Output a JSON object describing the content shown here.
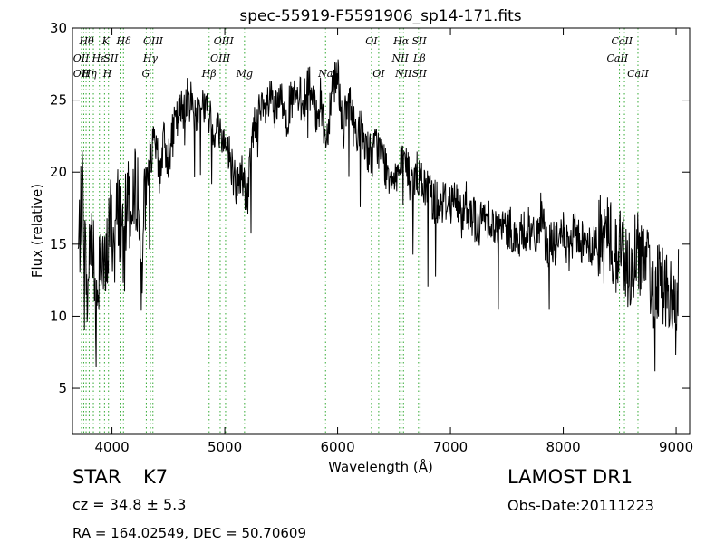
{
  "chart_data": {
    "type": "line",
    "title": "spec-55919-F5591906_sp14-171.fits",
    "xlabel": "Wavelength (Å)",
    "ylabel": "Flux (relative)",
    "xlim": [
      3650,
      9120
    ],
    "ylim": [
      1.8,
      30
    ],
    "xticks": [
      4000,
      5000,
      6000,
      7000,
      8000,
      9000
    ],
    "yticks": [
      5,
      10,
      15,
      20,
      25,
      30
    ],
    "grid": false,
    "line_color": "#000000",
    "marker_color": "#33aa33",
    "series": [
      {
        "x": [
          3700,
          3740,
          3780,
          3820,
          3860,
          3900,
          3940,
          3980,
          4020,
          4060,
          4100,
          4140,
          4180,
          4220,
          4260,
          4300,
          4340,
          4380,
          4420,
          4460,
          4500,
          4550,
          4600,
          4650,
          4700,
          4750,
          4800,
          4850,
          4900,
          4950,
          5000,
          5050,
          5100,
          5150,
          5200,
          5250,
          5300,
          5350,
          5400,
          5450,
          5500,
          5550,
          5600,
          5650,
          5700,
          5750,
          5800,
          5850,
          5900,
          5950,
          6000,
          6050,
          6100,
          6150,
          6200,
          6250,
          6300,
          6350,
          6400,
          6450,
          6500,
          6550,
          6600,
          6650,
          6700,
          6750,
          6800,
          6850,
          6900,
          6950,
          7000,
          7050,
          7100,
          7150,
          7200,
          7250,
          7300,
          7350,
          7400,
          7450,
          7500,
          7550,
          7600,
          7650,
          7700,
          7750,
          7800,
          7850,
          7900,
          7950,
          8000,
          8050,
          8100,
          8150,
          8200,
          8250,
          8300,
          8350,
          8400,
          8450,
          8500,
          8550,
          8600,
          8650,
          8700,
          8750,
          8800,
          8850,
          8900,
          8950,
          9000,
          9020
        ],
        "y": [
          14,
          19,
          11,
          17,
          10,
          16,
          12,
          17,
          15,
          18,
          14,
          19,
          16,
          20,
          13,
          19,
          21,
          22,
          20,
          22,
          21,
          23,
          24,
          25,
          25,
          24,
          25,
          24,
          23,
          23,
          22,
          21,
          19,
          20,
          18,
          23,
          24,
          24,
          25,
          24,
          25,
          24,
          25,
          25,
          25,
          26,
          24,
          25,
          22,
          26,
          27,
          23,
          25,
          23,
          23,
          22,
          21,
          22,
          21,
          20,
          20,
          20,
          21,
          19,
          20,
          19,
          19,
          18,
          18,
          18,
          18,
          18,
          17,
          18,
          17,
          16,
          17,
          17,
          16,
          16,
          16,
          16,
          15,
          16,
          16,
          15,
          17,
          15,
          15,
          15,
          16,
          14,
          16,
          15,
          16,
          14,
          16,
          15,
          16,
          14,
          15,
          14,
          13,
          15,
          14,
          13,
          12,
          13,
          12,
          11,
          10,
          12
        ]
      }
    ],
    "features": [
      {
        "t": -2,
        "lines": [
          {
            "w": 3730,
            "top": "Hθ"
          },
          {
            "w": 3734,
            "top": "OII"
          },
          {
            "w": 3750,
            "top": "OII"
          },
          {
            "w": 3771,
            "top": "Hη"
          },
          {
            "w": 3798,
            "top": "Hη"
          },
          {
            "w": 3835,
            "top": "Hζ"
          },
          {
            "w": 3889,
            "top": "Hε"
          },
          {
            "w": 3934,
            "top": "K"
          },
          {
            "w": 3969,
            "top": "H"
          },
          {
            "w": 4072,
            "top": "SII"
          },
          {
            "w": 4102,
            "top": "Hδ"
          },
          {
            "w": 4304,
            "top": "G"
          },
          {
            "w": 4341,
            "top": "Hγ"
          },
          {
            "w": 4363,
            "top": "OIII"
          },
          {
            "w": 4861,
            "top": "Hβ"
          },
          {
            "w": 4959,
            "top": "OIII"
          },
          {
            "w": 5007,
            "top": "OIII"
          },
          {
            "w": 5175,
            "top": "Mg"
          },
          {
            "w": 5893,
            "top": "Na"
          },
          {
            "w": 6300,
            "top": "OI"
          },
          {
            "w": 6364,
            "top": "OI"
          },
          {
            "w": 6548,
            "top": "NII"
          },
          {
            "w": 6563,
            "top": "Hα"
          },
          {
            "w": 6584,
            "top": "NII"
          },
          {
            "w": 6717,
            "top": "SII"
          },
          {
            "w": 6731,
            "top": "SII"
          },
          {
            "w": 8498,
            "top": "CaII"
          },
          {
            "w": 8542,
            "top": "CaII"
          },
          {
            "w": 8662,
            "top": "CaII"
          }
        ]
      }
    ],
    "line_labels": [
      {
        "text": "Hθ",
        "x": 3775,
        "row": 0
      },
      {
        "text": "K",
        "x": 3945,
        "row": 0
      },
      {
        "text": "Hδ",
        "x": 4105,
        "row": 0
      },
      {
        "text": "OIII",
        "x": 4365,
        "row": 0
      },
      {
        "text": "OIII",
        "x": 4990,
        "row": 0
      },
      {
        "text": "OI",
        "x": 6300,
        "row": 0
      },
      {
        "text": "Hα",
        "x": 6563,
        "row": 0
      },
      {
        "text": "SII",
        "x": 6723,
        "row": 0
      },
      {
        "text": "CaII",
        "x": 8520,
        "row": 0
      },
      {
        "text": "OII",
        "x": 3727,
        "row": 1
      },
      {
        "text": "Hε",
        "x": 3885,
        "row": 1
      },
      {
        "text": "SII",
        "x": 3990,
        "row": 1
      },
      {
        "text": "Hγ",
        "x": 4340,
        "row": 1
      },
      {
        "text": "OIII",
        "x": 4960,
        "row": 1
      },
      {
        "text": "NII",
        "x": 6555,
        "row": 1
      },
      {
        "text": "Lβ",
        "x": 6725,
        "row": 1
      },
      {
        "text": "CaII",
        "x": 8480,
        "row": 1
      },
      {
        "text": "OII",
        "x": 3727,
        "row": 2
      },
      {
        "text": "Hη",
        "x": 3800,
        "row": 2
      },
      {
        "text": "H",
        "x": 3960,
        "row": 2
      },
      {
        "text": "G",
        "x": 4300,
        "row": 2
      },
      {
        "text": "Hβ",
        "x": 4860,
        "row": 2
      },
      {
        "text": "Mg",
        "x": 5175,
        "row": 2
      },
      {
        "text": "Na",
        "x": 5893,
        "row": 2
      },
      {
        "text": "OI",
        "x": 6364,
        "row": 2
      },
      {
        "text": "NII",
        "x": 6584,
        "row": 2
      },
      {
        "text": "SII",
        "x": 6725,
        "row": 2
      },
      {
        "text": "CaII",
        "x": 8662,
        "row": 2
      }
    ]
  },
  "info": {
    "object_class": "STAR",
    "subclass": "K7",
    "cz": "cz = 34.8 ± 5.3",
    "coords": "RA = 164.02549, DEC = 50.70609",
    "survey": "LAMOST DR1",
    "obs_date": "Obs-Date:20111223"
  }
}
